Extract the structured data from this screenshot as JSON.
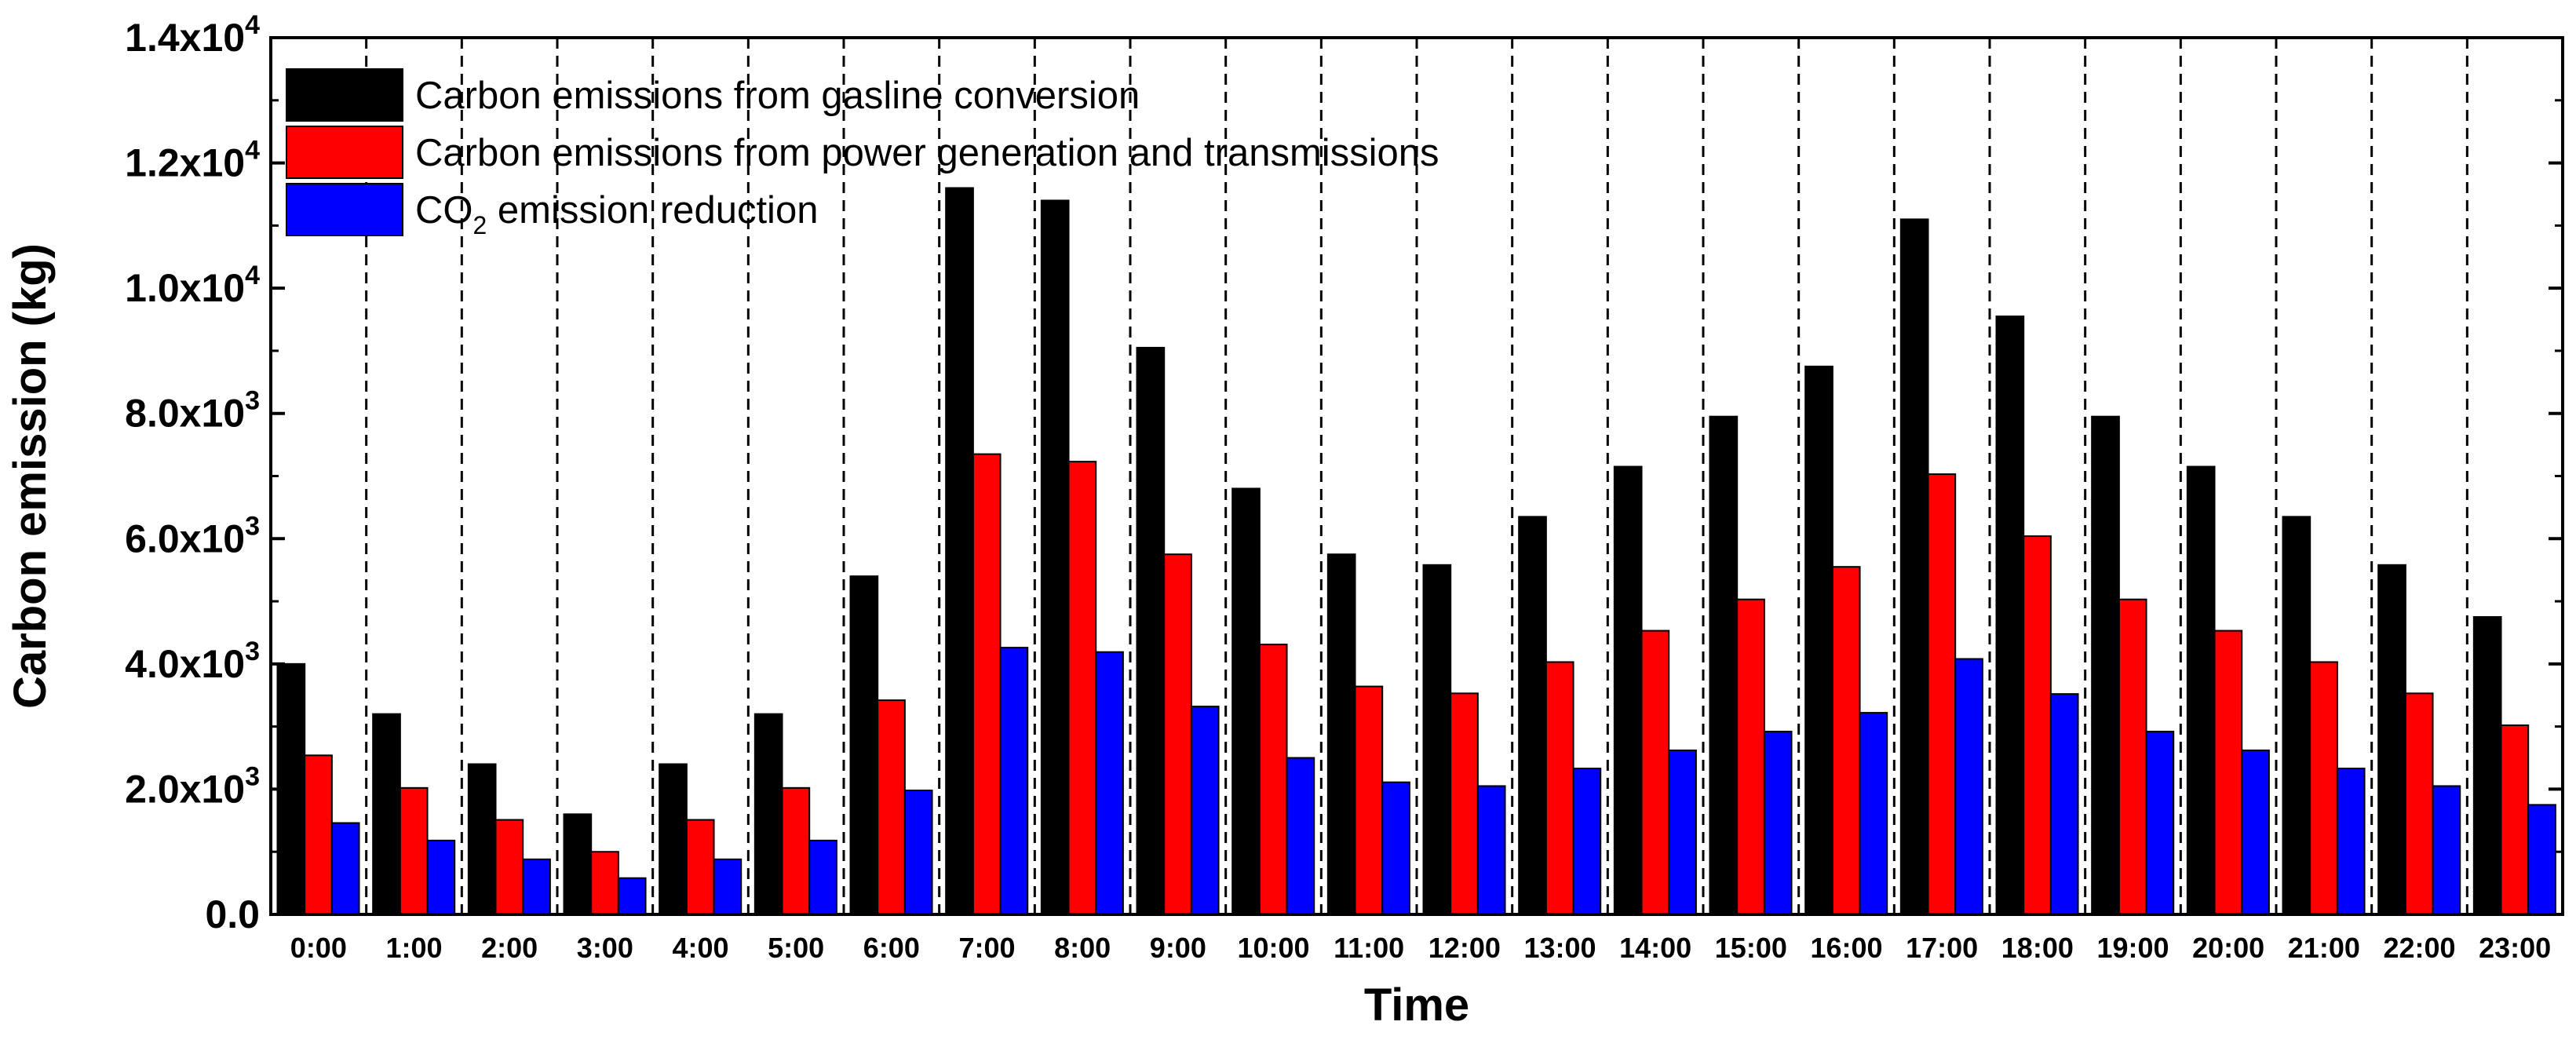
{
  "chart_data": {
    "type": "bar",
    "title": "",
    "xlabel": "Time",
    "ylabel": "Carbon emission (kg)",
    "ylim": [
      0,
      14000
    ],
    "yticks": [
      {
        "value": 0,
        "label": "0.0",
        "exp": ""
      },
      {
        "value": 2000,
        "label": "2.0x10",
        "exp": "3"
      },
      {
        "value": 4000,
        "label": "4.0x10",
        "exp": "3"
      },
      {
        "value": 6000,
        "label": "6.0x10",
        "exp": "3"
      },
      {
        "value": 8000,
        "label": "8.0x10",
        "exp": "3"
      },
      {
        "value": 10000,
        "label": "1.0x10",
        "exp": "4"
      },
      {
        "value": 12000,
        "label": "1.2x10",
        "exp": "4"
      },
      {
        "value": 14000,
        "label": "1.4x10",
        "exp": "4"
      }
    ],
    "categories": [
      "0:00",
      "1:00",
      "2:00",
      "3:00",
      "4:00",
      "5:00",
      "6:00",
      "7:00",
      "8:00",
      "9:00",
      "10:00",
      "11:00",
      "12:00",
      "13:00",
      "14:00",
      "15:00",
      "16:00",
      "17:00",
      "18:00",
      "19:00",
      "20:00",
      "21:00",
      "22:00",
      "23:00"
    ],
    "series": [
      {
        "name": "Carbon emissions from gasline conversion",
        "color": "#000000",
        "values": [
          4000,
          3200,
          2400,
          1600,
          2400,
          3200,
          5400,
          11600,
          11400,
          9050,
          6800,
          5750,
          5580,
          6350,
          7150,
          7950,
          8750,
          11100,
          9550,
          7950,
          7150,
          6350,
          5580,
          4750
        ]
      },
      {
        "name": "Carbon emissions from power generation and transmissions",
        "color": "#ff0000",
        "values": [
          2540,
          2020,
          1510,
          1000,
          1510,
          2020,
          3420,
          7350,
          7230,
          5750,
          4310,
          3640,
          3530,
          4030,
          4530,
          5030,
          5550,
          7030,
          6040,
          5030,
          4530,
          4030,
          3530,
          3020
        ]
      },
      {
        "name": "CO2 emission reduction",
        "color": "#0000ff",
        "values": [
          1460,
          1180,
          880,
          580,
          880,
          1180,
          1980,
          4260,
          4190,
          3320,
          2500,
          2110,
          2050,
          2330,
          2620,
          2920,
          3220,
          4080,
          3520,
          2920,
          2620,
          2330,
          2050,
          1750
        ]
      }
    ],
    "legend": [
      {
        "text": "Carbon emissions from gasline conversion",
        "sub": "",
        "rest": ""
      },
      {
        "text": "Carbon emissions from power generation and transmissions",
        "sub": "",
        "rest": ""
      },
      {
        "text": "CO",
        "sub": "2",
        "rest": " emission reduction"
      }
    ],
    "legend_position": "top-left",
    "grid": "dashed vertical separators between categories"
  }
}
